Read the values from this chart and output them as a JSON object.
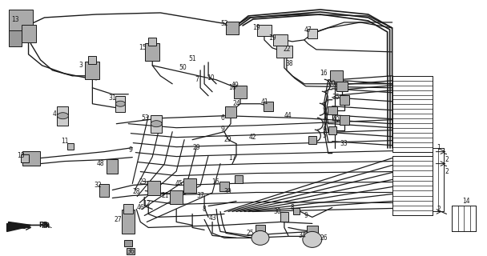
{
  "bg_color": "#ffffff",
  "line_color": "#1a1a1a",
  "fig_width": 6.08,
  "fig_height": 3.2,
  "dpi": 100
}
